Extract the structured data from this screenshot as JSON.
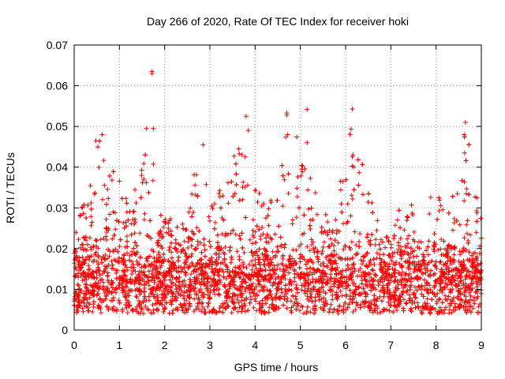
{
  "chart_data": {
    "type": "scatter",
    "title": "Day 266 of 2020, Rate Of TEC Index for receiver hoki",
    "xlabel": "GPS time / hours",
    "ylabel": "ROTI / TECUs",
    "xlim": [
      0,
      9
    ],
    "ylim": [
      0,
      0.07
    ],
    "xticks": [
      0,
      1,
      2,
      3,
      4,
      5,
      6,
      7,
      8,
      9
    ],
    "yticks": [
      0,
      0.01,
      0.02,
      0.03,
      0.04,
      0.05,
      0.06,
      0.07
    ],
    "xtick_labels": [
      "0",
      "1",
      "2",
      "3",
      "4",
      "5",
      "6",
      "7",
      "8",
      "9"
    ],
    "ytick_labels": [
      "0",
      "0.01",
      "0.02",
      "0.03",
      "0.04",
      "0.05",
      "0.06",
      "0.07"
    ],
    "grid": true,
    "marker": "+",
    "color": "#ff0000",
    "series": [
      {
        "name": "ROTI",
        "envelope_x": [
          0,
          0.25,
          0.5,
          0.6,
          0.75,
          1.0,
          1.25,
          1.5,
          1.7,
          1.9,
          2.1,
          2.3,
          2.5,
          2.75,
          3.0,
          3.25,
          3.5,
          3.75,
          4.0,
          4.25,
          4.5,
          4.7,
          5.0,
          5.25,
          5.5,
          5.75,
          6.0,
          6.2,
          6.5,
          6.75,
          7.0,
          7.25,
          7.5,
          7.75,
          8.0,
          8.25,
          8.5,
          8.65,
          8.85,
          9.0
        ],
        "envelope_ymax": [
          0.024,
          0.033,
          0.046,
          0.048,
          0.041,
          0.037,
          0.03,
          0.046,
          0.049,
          0.029,
          0.028,
          0.025,
          0.03,
          0.045,
          0.032,
          0.035,
          0.043,
          0.052,
          0.038,
          0.032,
          0.036,
          0.053,
          0.046,
          0.038,
          0.03,
          0.025,
          0.047,
          0.054,
          0.034,
          0.03,
          0.022,
          0.033,
          0.031,
          0.028,
          0.038,
          0.031,
          0.036,
          0.051,
          0.038,
          0.03
        ],
        "baseline_min": 0.004,
        "baseline_mean": 0.012,
        "outliers": [
          {
            "x": 1.72,
            "y": 0.0635
          },
          {
            "x": 1.72,
            "y": 0.063
          },
          {
            "x": 6.15,
            "y": 0.0543
          },
          {
            "x": 5.15,
            "y": 0.0542
          },
          {
            "x": 4.7,
            "y": 0.0533
          },
          {
            "x": 4.7,
            "y": 0.0528
          },
          {
            "x": 3.8,
            "y": 0.0525
          },
          {
            "x": 8.65,
            "y": 0.051
          },
          {
            "x": 1.6,
            "y": 0.0495
          },
          {
            "x": 1.75,
            "y": 0.0495
          },
          {
            "x": 3.85,
            "y": 0.049
          },
          {
            "x": 0.62,
            "y": 0.048
          },
          {
            "x": 4.72,
            "y": 0.048
          },
          {
            "x": 8.62,
            "y": 0.048
          },
          {
            "x": 0.48,
            "y": 0.0465
          },
          {
            "x": 5.15,
            "y": 0.046
          },
          {
            "x": 2.85,
            "y": 0.0455
          },
          {
            "x": 3.65,
            "y": 0.0433
          },
          {
            "x": 3.78,
            "y": 0.0425
          },
          {
            "x": 6.15,
            "y": 0.0425
          },
          {
            "x": 8.63,
            "y": 0.0435
          }
        ]
      }
    ]
  }
}
